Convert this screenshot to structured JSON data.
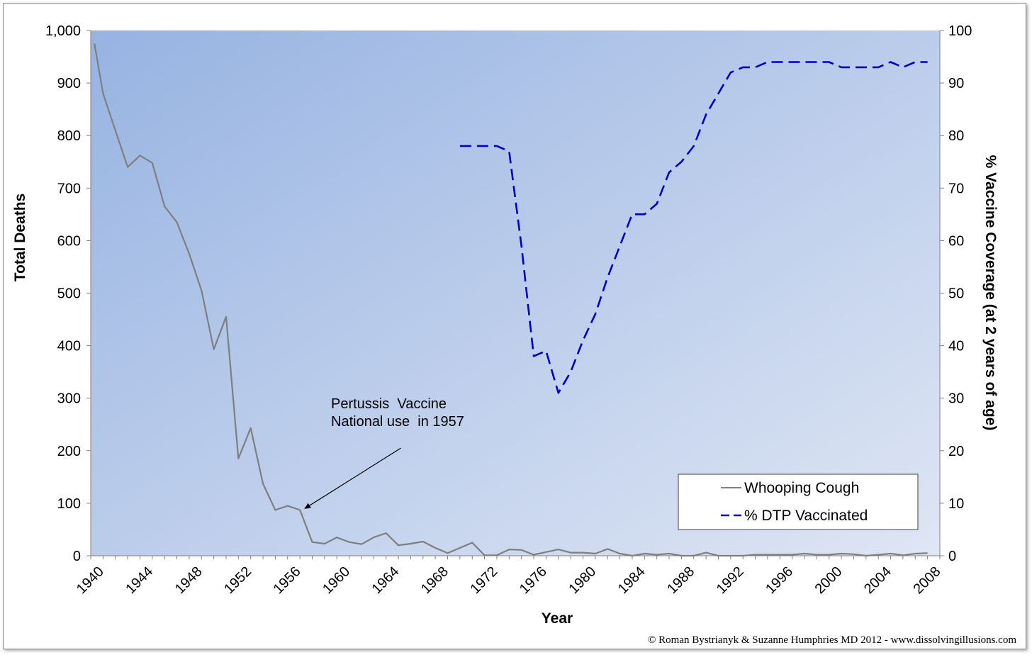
{
  "chart_data": {
    "type": "line",
    "xlabel": "Year",
    "ylabel_left": "Total Deaths",
    "ylabel_right": "% Vaccine Coverage (at 2 years of age)",
    "xlim": [
      1940,
      2009
    ],
    "ylim_left": [
      0,
      1000
    ],
    "ylim_right": [
      0,
      100
    ],
    "x_ticks": [
      "1940",
      "1944",
      "1948",
      "1952",
      "1956",
      "1960",
      "1964",
      "1968",
      "1972",
      "1976",
      "1980",
      "1984",
      "1988",
      "1992",
      "1996",
      "2000",
      "2004",
      "2008"
    ],
    "y_left_ticks": [
      "0",
      "100",
      "200",
      "300",
      "400",
      "500",
      "600",
      "700",
      "800",
      "900",
      "1,000"
    ],
    "y_right_ticks": [
      "0",
      "10",
      "20",
      "30",
      "40",
      "50",
      "60",
      "70",
      "80",
      "90",
      "100"
    ],
    "grid": false,
    "legend_position": "bottom-right",
    "series": [
      {
        "name": "Whooping Cough",
        "axis": "left",
        "color": "#7f7f7f",
        "style": "solid",
        "points": [
          [
            1940.3,
            975
          ],
          [
            1941,
            880
          ],
          [
            1942,
            810
          ],
          [
            1943,
            740
          ],
          [
            1944,
            762
          ],
          [
            1945,
            748
          ],
          [
            1946,
            665
          ],
          [
            1947,
            635
          ],
          [
            1948,
            575
          ],
          [
            1949,
            505
          ],
          [
            1950,
            393
          ],
          [
            1951,
            455
          ],
          [
            1952,
            185
          ],
          [
            1953,
            243
          ],
          [
            1954,
            137
          ],
          [
            1955,
            87
          ],
          [
            1956,
            95
          ],
          [
            1957,
            87
          ],
          [
            1958,
            26
          ],
          [
            1959,
            23
          ],
          [
            1960,
            35
          ],
          [
            1961,
            26
          ],
          [
            1962,
            22
          ],
          [
            1963,
            35
          ],
          [
            1964,
            43
          ],
          [
            1965,
            20
          ],
          [
            1966,
            23
          ],
          [
            1967,
            27
          ],
          [
            1968,
            15
          ],
          [
            1969,
            5
          ],
          [
            1970,
            15
          ],
          [
            1971,
            25
          ],
          [
            1972,
            1
          ],
          [
            1973,
            1
          ],
          [
            1974,
            12
          ],
          [
            1975,
            11
          ],
          [
            1976,
            2
          ],
          [
            1977,
            7
          ],
          [
            1978,
            12
          ],
          [
            1979,
            6
          ],
          [
            1980,
            6
          ],
          [
            1981,
            4
          ],
          [
            1982,
            13
          ],
          [
            1983,
            4
          ],
          [
            1984,
            0
          ],
          [
            1985,
            4
          ],
          [
            1986,
            2
          ],
          [
            1987,
            4
          ],
          [
            1988,
            0
          ],
          [
            1989,
            0
          ],
          [
            1990,
            6
          ],
          [
            1991,
            0
          ],
          [
            1992,
            0
          ],
          [
            1993,
            0
          ],
          [
            1994,
            2
          ],
          [
            1995,
            2
          ],
          [
            1996,
            2
          ],
          [
            1997,
            2
          ],
          [
            1998,
            4
          ],
          [
            1999,
            2
          ],
          [
            2000,
            2
          ],
          [
            2001,
            4
          ],
          [
            2002,
            3
          ],
          [
            2003,
            0
          ],
          [
            2004,
            2
          ],
          [
            2005,
            4
          ],
          [
            2006,
            1
          ],
          [
            2007,
            4
          ],
          [
            2008,
            5
          ]
        ]
      },
      {
        "name": "% DTP Vaccinated",
        "axis": "right",
        "color": "#0000cc",
        "style": "dashed",
        "points": [
          [
            1970,
            78
          ],
          [
            1971,
            78
          ],
          [
            1972,
            78
          ],
          [
            1973,
            78
          ],
          [
            1974,
            77
          ],
          [
            1975,
            59
          ],
          [
            1976,
            38
          ],
          [
            1977,
            39
          ],
          [
            1978,
            31
          ],
          [
            1979,
            35
          ],
          [
            1980,
            41
          ],
          [
            1981,
            46
          ],
          [
            1982,
            53
          ],
          [
            1983,
            59
          ],
          [
            1984,
            65
          ],
          [
            1985,
            65
          ],
          [
            1986,
            67
          ],
          [
            1987,
            73
          ],
          [
            1988,
            75
          ],
          [
            1989,
            78
          ],
          [
            1990,
            84
          ],
          [
            1991,
            88
          ],
          [
            1992,
            92
          ],
          [
            1993,
            93
          ],
          [
            1994,
            93
          ],
          [
            1995,
            94
          ],
          [
            1996,
            94
          ],
          [
            1997,
            94
          ],
          [
            1998,
            94
          ],
          [
            1999,
            94
          ],
          [
            2000,
            94
          ],
          [
            2001,
            93
          ],
          [
            2002,
            93
          ],
          [
            2003,
            93
          ],
          [
            2004,
            93
          ],
          [
            2005,
            94
          ],
          [
            2006,
            93
          ],
          [
            2007,
            94
          ],
          [
            2008,
            94
          ]
        ]
      }
    ],
    "annotation": {
      "line1": "Pertussis  Vaccine",
      "line2": "National use  in 1957",
      "arrow_from": [
        1965.2,
        205
      ],
      "arrow_to": [
        1957.4,
        90
      ]
    }
  },
  "credit": "© Roman Bystrianyk & Suzanne Humphries MD 2012 - www.dissolvingillusions.com"
}
